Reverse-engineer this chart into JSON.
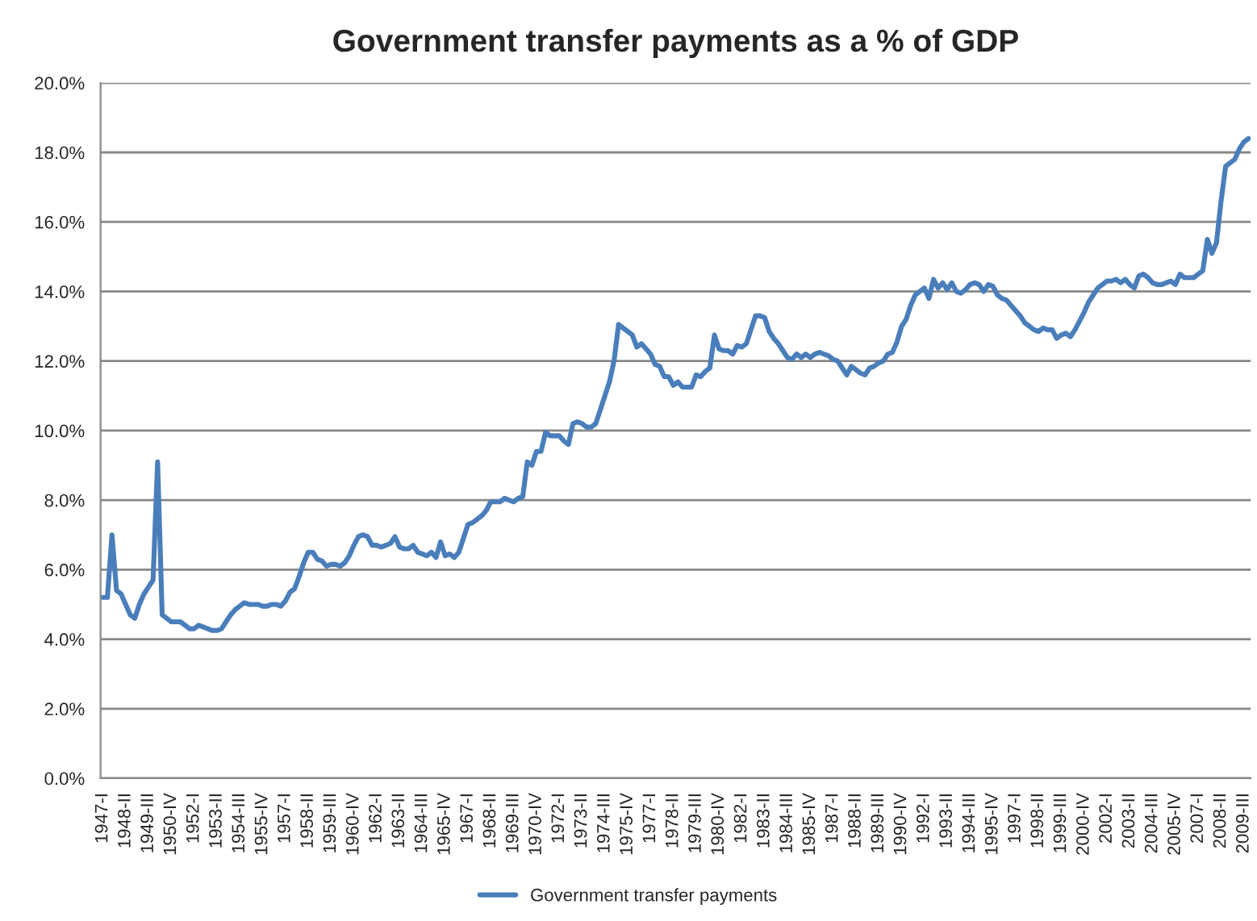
{
  "chart_data": {
    "type": "line",
    "title": "Government transfer payments as a % of GDP",
    "categories": [
      "1947-I",
      null,
      null,
      null,
      null,
      "1948-II",
      null,
      null,
      null,
      null,
      "1949-III",
      null,
      null,
      null,
      null,
      "1950-IV",
      null,
      null,
      null,
      null,
      "1952-I",
      null,
      null,
      null,
      null,
      "1953-II",
      null,
      null,
      null,
      null,
      "1954-III",
      null,
      null,
      null,
      null,
      "1955-IV",
      null,
      null,
      null,
      null,
      "1957-I",
      null,
      null,
      null,
      null,
      "1958-II",
      null,
      null,
      null,
      null,
      "1959-III",
      null,
      null,
      null,
      null,
      "1960-IV",
      null,
      null,
      null,
      null,
      "1962-I",
      null,
      null,
      null,
      null,
      "1963-II",
      null,
      null,
      null,
      null,
      "1964-III",
      null,
      null,
      null,
      null,
      "1965-IV",
      null,
      null,
      null,
      null,
      "1967-I",
      null,
      null,
      null,
      null,
      "1968-II",
      null,
      null,
      null,
      null,
      "1969-III",
      null,
      null,
      null,
      null,
      "1970-IV",
      null,
      null,
      null,
      null,
      "1972-I",
      null,
      null,
      null,
      null,
      "1973-II",
      null,
      null,
      null,
      null,
      "1974-III",
      null,
      null,
      null,
      null,
      "1975-IV",
      null,
      null,
      null,
      null,
      "1977-I",
      null,
      null,
      null,
      null,
      "1978-II",
      null,
      null,
      null,
      null,
      "1979-III",
      null,
      null,
      null,
      null,
      "1980-IV",
      null,
      null,
      null,
      null,
      "1982-I",
      null,
      null,
      null,
      null,
      "1983-II",
      null,
      null,
      null,
      null,
      "1984-III",
      null,
      null,
      null,
      null,
      "1985-IV",
      null,
      null,
      null,
      null,
      "1987-I",
      null,
      null,
      null,
      null,
      "1988-II",
      null,
      null,
      null,
      null,
      "1989-III",
      null,
      null,
      null,
      null,
      "1990-IV",
      null,
      null,
      null,
      null,
      "1992-I",
      null,
      null,
      null,
      null,
      "1993-II",
      null,
      null,
      null,
      null,
      "1994-III",
      null,
      null,
      null,
      null,
      "1995-IV",
      null,
      null,
      null,
      null,
      "1997-I",
      null,
      null,
      null,
      null,
      "1998-II",
      null,
      null,
      null,
      null,
      "1999-III",
      null,
      null,
      null,
      null,
      "2000-IV",
      null,
      null,
      null,
      null,
      "2002-I",
      null,
      null,
      null,
      null,
      "2003-II",
      null,
      null,
      null,
      null,
      "2004-III",
      null,
      null,
      null,
      null,
      "2005-IV",
      null,
      null,
      null,
      null,
      "2007-I",
      null,
      null,
      null,
      null,
      "2008-II",
      null,
      null,
      null,
      null,
      "2009-III",
      null
    ],
    "series": [
      {
        "name": "Government transfer payments",
        "color": "#4a7ebb",
        "values": [
          5.2,
          5.2,
          7.0,
          5.4,
          5.3,
          5.0,
          4.7,
          4.6,
          5.0,
          5.3,
          5.5,
          5.7,
          9.1,
          4.7,
          4.6,
          4.5,
          4.5,
          4.5,
          4.4,
          4.3,
          4.3,
          4.4,
          4.35,
          4.3,
          4.25,
          4.25,
          4.3,
          4.5,
          4.7,
          4.85,
          4.95,
          5.05,
          5.0,
          5.0,
          5.0,
          4.95,
          4.95,
          5.0,
          5.0,
          4.95,
          5.1,
          5.35,
          5.45,
          5.8,
          6.2,
          6.5,
          6.5,
          6.3,
          6.25,
          6.1,
          6.15,
          6.15,
          6.1,
          6.2,
          6.4,
          6.7,
          6.95,
          7.0,
          6.95,
          6.7,
          6.7,
          6.65,
          6.7,
          6.75,
          6.95,
          6.65,
          6.6,
          6.6,
          6.7,
          6.5,
          6.45,
          6.4,
          6.5,
          6.35,
          6.8,
          6.4,
          6.45,
          6.35,
          6.5,
          6.9,
          7.3,
          7.35,
          7.45,
          7.55,
          7.7,
          7.95,
          7.95,
          7.95,
          8.05,
          8.0,
          7.95,
          8.05,
          8.1,
          9.1,
          9.0,
          9.4,
          9.4,
          9.95,
          9.85,
          9.85,
          9.85,
          9.7,
          9.6,
          10.2,
          10.25,
          10.2,
          10.1,
          10.1,
          10.2,
          10.6,
          11.0,
          11.4,
          12.0,
          13.05,
          12.95,
          12.85,
          12.75,
          12.4,
          12.5,
          12.35,
          12.2,
          11.9,
          11.85,
          11.55,
          11.55,
          11.3,
          11.4,
          11.25,
          11.25,
          11.25,
          11.6,
          11.55,
          11.7,
          11.8,
          12.75,
          12.35,
          12.3,
          12.3,
          12.2,
          12.45,
          12.4,
          12.5,
          12.9,
          13.3,
          13.3,
          13.25,
          12.85,
          12.65,
          12.5,
          12.3,
          12.1,
          12.05,
          12.2,
          12.1,
          12.2,
          12.1,
          12.2,
          12.25,
          12.2,
          12.15,
          12.05,
          12.0,
          11.8,
          11.6,
          11.85,
          11.75,
          11.65,
          11.6,
          11.8,
          11.85,
          11.95,
          12.0,
          12.2,
          12.25,
          12.55,
          13.0,
          13.2,
          13.6,
          13.9,
          14.0,
          14.1,
          13.8,
          14.35,
          14.1,
          14.25,
          14.05,
          14.25,
          14.0,
          13.95,
          14.05,
          14.2,
          14.25,
          14.2,
          14.0,
          14.2,
          14.15,
          13.9,
          13.8,
          13.75,
          13.6,
          13.45,
          13.3,
          13.1,
          13.0,
          12.9,
          12.85,
          12.95,
          12.9,
          12.9,
          12.65,
          12.75,
          12.8,
          12.7,
          12.9,
          13.15,
          13.4,
          13.7,
          13.9,
          14.1,
          14.2,
          14.3,
          14.3,
          14.35,
          14.25,
          14.35,
          14.2,
          14.1,
          14.45,
          14.5,
          14.4,
          14.25,
          14.2,
          14.2,
          14.25,
          14.3,
          14.2,
          14.5,
          14.4,
          14.4,
          14.4,
          14.5,
          14.6,
          15.5,
          15.1,
          15.4,
          16.6,
          17.6,
          17.7,
          17.8,
          18.1,
          18.3,
          18.4
        ]
      }
    ],
    "ylim": [
      0,
      20
    ],
    "yticks": [
      {
        "value": 0,
        "label": "0.0%"
      },
      {
        "value": 2,
        "label": "2.0%"
      },
      {
        "value": 4,
        "label": "4.0%"
      },
      {
        "value": 6,
        "label": "6.0%"
      },
      {
        "value": 8,
        "label": "8.0%"
      },
      {
        "value": 10,
        "label": "10.0%"
      },
      {
        "value": 12,
        "label": "12.0%"
      },
      {
        "value": 14,
        "label": "14.0%"
      },
      {
        "value": 16,
        "label": "16.0%"
      },
      {
        "value": 18,
        "label": "18.0%"
      },
      {
        "value": 20,
        "label": "20.0%"
      }
    ],
    "grid": "y",
    "legend": "bottom",
    "marker": "none",
    "line_style": "solid"
  }
}
